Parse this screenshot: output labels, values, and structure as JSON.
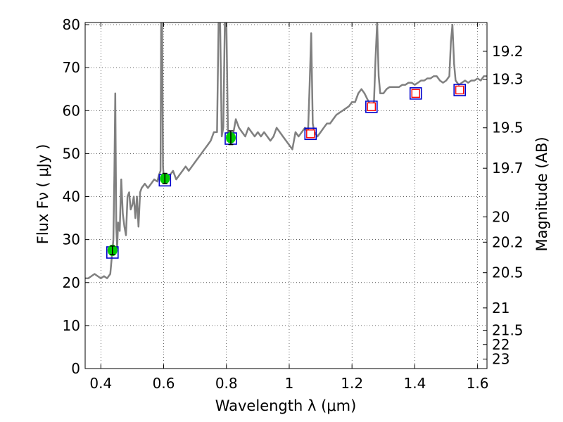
{
  "chart_data": {
    "type": "line",
    "xlabel": "Wavelength  λ (μm)",
    "ylabel": "Flux  Fν  ( μJy )",
    "ylabel_right": "Magnitude (AB)",
    "xlim": [
      0.35,
      1.63
    ],
    "ylim": [
      0,
      80.5
    ],
    "grid": true,
    "x_ticks": [
      0.4,
      0.6,
      0.8,
      1.0,
      1.2,
      1.4,
      1.6
    ],
    "x_tick_labels": [
      "0.4",
      "0.6",
      "0.8",
      "1",
      "1.2",
      "1.4",
      "1.6"
    ],
    "y_ticks": [
      0,
      10,
      20,
      30,
      40,
      50,
      60,
      70,
      80
    ],
    "y_tick_labels": [
      "0",
      "10",
      "20",
      "30",
      "40",
      "50",
      "60",
      "70",
      "80"
    ],
    "right_axis_ticks": [
      {
        "label": "19.2",
        "flux": 73.8
      },
      {
        "label": "19.3",
        "flux": 67.3
      },
      {
        "label": "19.5",
        "flux": 56.0
      },
      {
        "label": "19.7",
        "flux": 46.6
      },
      {
        "label": "20",
        "flux": 35.3
      },
      {
        "label": "20.2",
        "flux": 29.4
      },
      {
        "label": "20.5",
        "flux": 22.3
      },
      {
        "label": "21",
        "flux": 14.1
      },
      {
        "label": "21.5",
        "flux": 8.9
      },
      {
        "label": "22",
        "flux": 5.6
      },
      {
        "label": "23",
        "flux": 2.2
      }
    ],
    "spectrum": {
      "color": "#808080",
      "points": [
        [
          0.35,
          21.0
        ],
        [
          0.36,
          21.0
        ],
        [
          0.37,
          21.5
        ],
        [
          0.38,
          22.0
        ],
        [
          0.39,
          21.5
        ],
        [
          0.4,
          21.0
        ],
        [
          0.41,
          21.5
        ],
        [
          0.42,
          21.0
        ],
        [
          0.43,
          22.0
        ],
        [
          0.435,
          26.0
        ],
        [
          0.44,
          30.0
        ],
        [
          0.443,
          45.0
        ],
        [
          0.446,
          64.0
        ],
        [
          0.449,
          33.0
        ],
        [
          0.452,
          28.0
        ],
        [
          0.455,
          34.0
        ],
        [
          0.46,
          32.0
        ],
        [
          0.465,
          44.0
        ],
        [
          0.47,
          36.0
        ],
        [
          0.475,
          33.0
        ],
        [
          0.48,
          31.0
        ],
        [
          0.485,
          40.0
        ],
        [
          0.49,
          41.0
        ],
        [
          0.495,
          37.0
        ],
        [
          0.5,
          38.0
        ],
        [
          0.505,
          40.0
        ],
        [
          0.51,
          35.0
        ],
        [
          0.515,
          40.0
        ],
        [
          0.52,
          33.0
        ],
        [
          0.525,
          41.0
        ],
        [
          0.53,
          42.0
        ],
        [
          0.54,
          43.0
        ],
        [
          0.55,
          42.0
        ],
        [
          0.56,
          43.0
        ],
        [
          0.57,
          44.0
        ],
        [
          0.58,
          43.5
        ],
        [
          0.585,
          45.0
        ],
        [
          0.59,
          46.0
        ],
        [
          0.592,
          80.5
        ],
        [
          0.595,
          80.5
        ],
        [
          0.598,
          47.0
        ],
        [
          0.6,
          45.0
        ],
        [
          0.61,
          44.0
        ],
        [
          0.62,
          45.0
        ],
        [
          0.63,
          46.0
        ],
        [
          0.64,
          44.0
        ],
        [
          0.65,
          45.0
        ],
        [
          0.66,
          46.0
        ],
        [
          0.67,
          47.0
        ],
        [
          0.68,
          46.0
        ],
        [
          0.69,
          47.0
        ],
        [
          0.7,
          48.0
        ],
        [
          0.71,
          49.0
        ],
        [
          0.72,
          50.0
        ],
        [
          0.73,
          51.0
        ],
        [
          0.74,
          52.0
        ],
        [
          0.75,
          53.0
        ],
        [
          0.76,
          55.0
        ],
        [
          0.77,
          55.0
        ],
        [
          0.775,
          80.5
        ],
        [
          0.78,
          80.5
        ],
        [
          0.785,
          54.0
        ],
        [
          0.79,
          56.0
        ],
        [
          0.795,
          80.5
        ],
        [
          0.8,
          80.5
        ],
        [
          0.805,
          54.0
        ],
        [
          0.81,
          55.0
        ],
        [
          0.82,
          54.0
        ],
        [
          0.83,
          58.0
        ],
        [
          0.84,
          56.0
        ],
        [
          0.85,
          55.0
        ],
        [
          0.86,
          54.0
        ],
        [
          0.87,
          56.0
        ],
        [
          0.88,
          55.0
        ],
        [
          0.89,
          54.0
        ],
        [
          0.9,
          55.0
        ],
        [
          0.91,
          54.0
        ],
        [
          0.92,
          55.0
        ],
        [
          0.93,
          54.0
        ],
        [
          0.94,
          53.0
        ],
        [
          0.95,
          54.0
        ],
        [
          0.96,
          56.0
        ],
        [
          0.97,
          55.0
        ],
        [
          0.98,
          54.0
        ],
        [
          0.99,
          53.0
        ],
        [
          1.0,
          52.0
        ],
        [
          1.01,
          51.0
        ],
        [
          1.02,
          55.0
        ],
        [
          1.03,
          54.0
        ],
        [
          1.04,
          55.0
        ],
        [
          1.05,
          56.0
        ],
        [
          1.06,
          55.0
        ],
        [
          1.065,
          66.0
        ],
        [
          1.07,
          78.0
        ],
        [
          1.075,
          57.0
        ],
        [
          1.08,
          55.0
        ],
        [
          1.09,
          54.0
        ],
        [
          1.1,
          55.0
        ],
        [
          1.11,
          56.0
        ],
        [
          1.12,
          57.0
        ],
        [
          1.13,
          57.0
        ],
        [
          1.14,
          58.0
        ],
        [
          1.15,
          59.0
        ],
        [
          1.16,
          59.5
        ],
        [
          1.17,
          60.0
        ],
        [
          1.18,
          60.5
        ],
        [
          1.19,
          61.0
        ],
        [
          1.2,
          62.0
        ],
        [
          1.21,
          62.0
        ],
        [
          1.22,
          64.0
        ],
        [
          1.23,
          65.0
        ],
        [
          1.24,
          64.0
        ],
        [
          1.25,
          62.5
        ],
        [
          1.26,
          61.0
        ],
        [
          1.27,
          62.0
        ],
        [
          1.275,
          72.0
        ],
        [
          1.28,
          80.5
        ],
        [
          1.285,
          68.0
        ],
        [
          1.29,
          64.0
        ],
        [
          1.3,
          64.0
        ],
        [
          1.31,
          65.0
        ],
        [
          1.32,
          65.5
        ],
        [
          1.33,
          65.5
        ],
        [
          1.34,
          65.5
        ],
        [
          1.35,
          65.5
        ],
        [
          1.36,
          66.0
        ],
        [
          1.37,
          66.0
        ],
        [
          1.38,
          66.5
        ],
        [
          1.39,
          66.5
        ],
        [
          1.4,
          66.0
        ],
        [
          1.41,
          66.5
        ],
        [
          1.42,
          67.0
        ],
        [
          1.43,
          67.0
        ],
        [
          1.44,
          67.5
        ],
        [
          1.45,
          67.5
        ],
        [
          1.46,
          68.0
        ],
        [
          1.47,
          68.0
        ],
        [
          1.48,
          67.0
        ],
        [
          1.49,
          66.5
        ],
        [
          1.5,
          67.0
        ],
        [
          1.51,
          68.0
        ],
        [
          1.515,
          76.0
        ],
        [
          1.52,
          80.0
        ],
        [
          1.525,
          71.0
        ],
        [
          1.53,
          67.0
        ],
        [
          1.54,
          66.0
        ],
        [
          1.55,
          66.5
        ],
        [
          1.56,
          67.0
        ],
        [
          1.57,
          66.5
        ],
        [
          1.58,
          67.0
        ],
        [
          1.59,
          67.0
        ],
        [
          1.6,
          67.5
        ],
        [
          1.61,
          67.0
        ],
        [
          1.62,
          68.0
        ],
        [
          1.63,
          68.0
        ]
      ]
    },
    "measured_points": {
      "color": "#00cc00",
      "points": [
        {
          "x": 0.437,
          "y": 27.5,
          "err": 1.0
        },
        {
          "x": 0.604,
          "y": 44.2,
          "err": 1.2
        },
        {
          "x": 0.814,
          "y": 53.7,
          "err": 1.6
        }
      ]
    },
    "model_points": {
      "color": "#0000cc",
      "points": [
        {
          "x": 0.437,
          "y": 27.0
        },
        {
          "x": 0.604,
          "y": 43.8
        },
        {
          "x": 0.814,
          "y": 53.5
        },
        {
          "x": 1.068,
          "y": 54.6
        },
        {
          "x": 1.262,
          "y": 60.9
        },
        {
          "x": 1.403,
          "y": 64.0
        },
        {
          "x": 1.543,
          "y": 64.8
        }
      ]
    },
    "upper_points": {
      "color": "#ff0000",
      "points": [
        {
          "x": 1.068,
          "y": 54.6
        },
        {
          "x": 1.262,
          "y": 60.9
        },
        {
          "x": 1.403,
          "y": 64.0
        },
        {
          "x": 1.543,
          "y": 64.8
        }
      ]
    }
  }
}
